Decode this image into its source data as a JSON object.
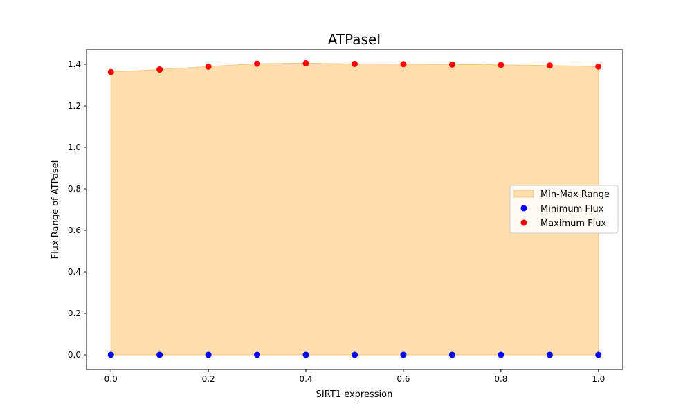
{
  "chart_data": {
    "type": "scatter",
    "title": "ATPaseI",
    "xlabel": "SIRT1 expression",
    "ylabel": "Flux Range of ATPaseI",
    "xlim": [
      -0.05,
      1.05
    ],
    "ylim": [
      -0.07,
      1.47
    ],
    "x_ticks": [
      "0.0",
      "0.2",
      "0.4",
      "0.6",
      "0.8",
      "1.0"
    ],
    "y_ticks": [
      "0.0",
      "0.2",
      "0.4",
      "0.6",
      "0.8",
      "1.0",
      "1.2",
      "1.4"
    ],
    "x": [
      0.0,
      0.1,
      0.2,
      0.3,
      0.4,
      0.5,
      0.6,
      0.7,
      0.8,
      0.9,
      1.0
    ],
    "series": [
      {
        "name": "Min-Max Range",
        "kind": "fill_between",
        "color": "#ffdead",
        "edge_color": "#f5c77e",
        "lower": [
          0,
          0,
          0,
          0,
          0,
          0,
          0,
          0,
          0,
          0,
          0
        ],
        "upper": [
          1.363,
          1.375,
          1.389,
          1.403,
          1.405,
          1.402,
          1.401,
          1.399,
          1.397,
          1.394,
          1.389
        ]
      },
      {
        "name": "Minimum Flux",
        "kind": "scatter",
        "color": "#0000ff",
        "values": [
          0,
          0,
          0,
          0,
          0,
          0,
          0,
          0,
          0,
          0,
          0
        ]
      },
      {
        "name": "Maximum Flux",
        "kind": "scatter",
        "color": "#ff0000",
        "values": [
          1.363,
          1.375,
          1.389,
          1.403,
          1.405,
          1.402,
          1.401,
          1.399,
          1.397,
          1.394,
          1.389
        ]
      }
    ],
    "legend_position": "center-right",
    "grid": false
  }
}
